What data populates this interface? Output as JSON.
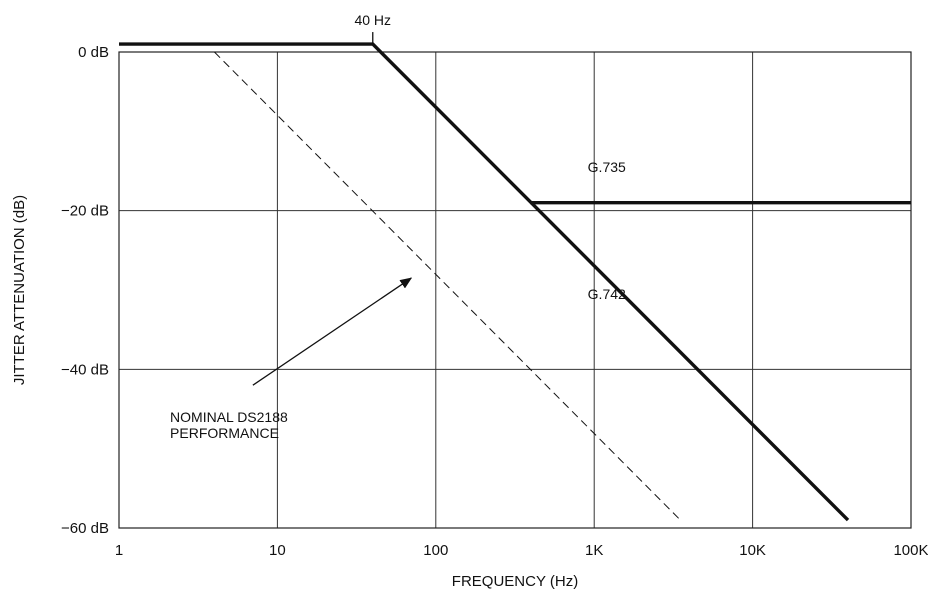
{
  "chart_data": {
    "type": "line",
    "xscale": "log",
    "xlim": [
      1,
      100000
    ],
    "ylim": [
      -60,
      0
    ],
    "grid": true,
    "xlabel": "FREQUENCY (Hz)",
    "ylabel": "JITTER ATTENUATION (dB)",
    "x_ticks": [
      1,
      10,
      100,
      1000,
      10000,
      100000
    ],
    "x_tick_labels": [
      "1",
      "10",
      "100",
      "1K",
      "10K",
      "100K"
    ],
    "y_ticks": [
      0,
      -20,
      -40,
      -60
    ],
    "y_tick_labels": [
      "0 dB",
      "−20 dB",
      "−40 dB",
      "−60 dB"
    ],
    "series": [
      {
        "name": "G.735",
        "style": "solid-thick",
        "points": [
          [
            1,
            1
          ],
          [
            40,
            1
          ],
          [
            400,
            -19
          ],
          [
            100000,
            -19
          ]
        ]
      },
      {
        "name": "G.742",
        "style": "solid-thick",
        "points": [
          [
            400,
            -19
          ],
          [
            40000,
            -59
          ]
        ]
      },
      {
        "name": "",
        "style": "dashed",
        "points": [
          [
            4,
            0
          ],
          [
            3500,
            -59
          ]
        ]
      }
    ],
    "annotations": [
      {
        "text": "40 Hz",
        "x": 40,
        "y": 1,
        "kind": "marker"
      },
      {
        "text": "G.735",
        "x": 1200,
        "y": -14.5,
        "kind": "label"
      },
      {
        "text": "G.742",
        "x": 1200,
        "y": -30.5,
        "kind": "label"
      },
      {
        "text": "NOMINAL DS2188",
        "x": 2.1,
        "y": -46,
        "kind": "callout"
      },
      {
        "text": "PERFORMANCE",
        "x": 2.1,
        "y": -48,
        "kind": "callout"
      }
    ],
    "callout_arrow": {
      "from": [
        7,
        -42
      ],
      "to": [
        70,
        -28.5
      ]
    },
    "colors": {
      "line": "#111111",
      "grid": "#333333",
      "background": "#ffffff"
    }
  }
}
